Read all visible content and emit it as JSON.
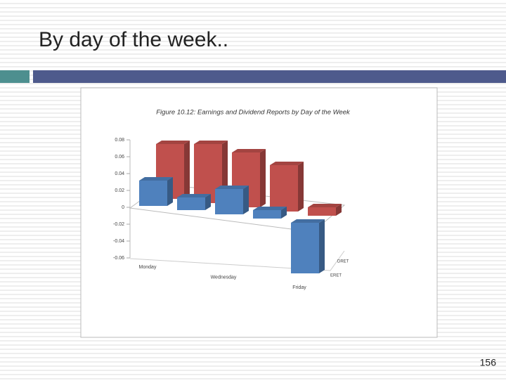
{
  "slide": {
    "title": "By day of the week..",
    "page_number": "156"
  },
  "chart_data": {
    "type": "bar3d",
    "title": "Figure 10.12: Earnings and Dividend Reports by Day of the Week",
    "categories": [
      "Monday",
      null,
      "Wednesday",
      null,
      "Friday"
    ],
    "series": [
      {
        "name": "DRET",
        "color": "#c0504d",
        "values": [
          0.065,
          0.07,
          0.065,
          0.055,
          0.01
        ]
      },
      {
        "name": "ERET",
        "color": "#4f81bd",
        "values": [
          0.03,
          0.015,
          0.03,
          0.01,
          -0.06
        ]
      }
    ],
    "ylim": [
      -0.06,
      0.08
    ],
    "yticks": [
      0.08,
      0.06,
      0.04,
      0.02,
      0,
      -0.02,
      -0.04,
      -0.06
    ]
  }
}
